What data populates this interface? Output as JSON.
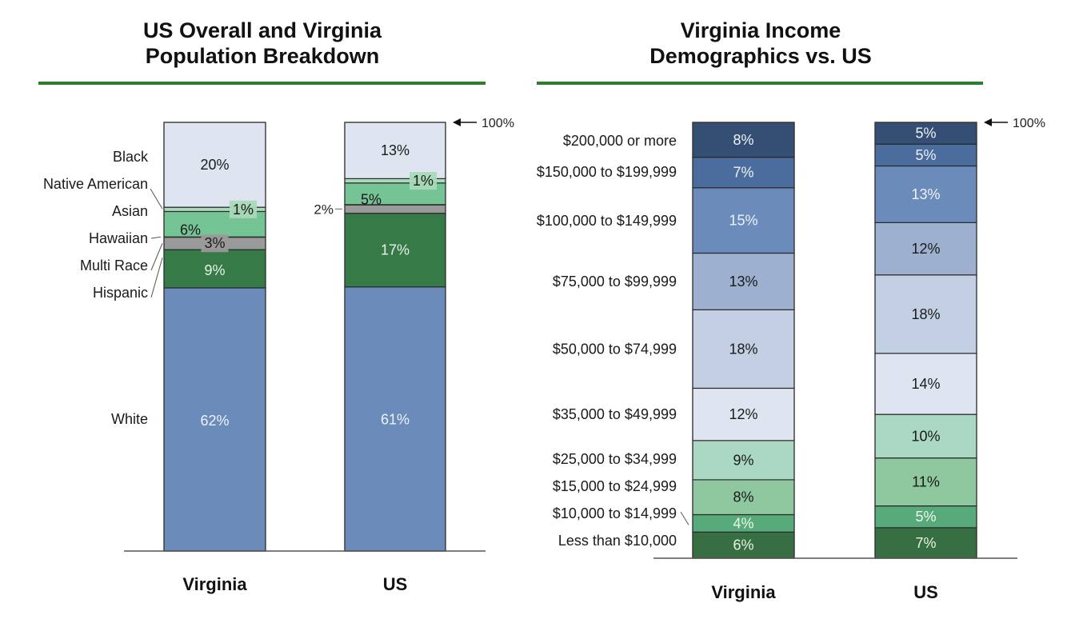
{
  "charts": [
    {
      "id": "population",
      "title_line1": "US Overall and Virginia",
      "title_line2": "Population Breakdown"
    },
    {
      "id": "income",
      "title_line1": "Virginia Income",
      "title_line2": "Demographics vs. US"
    }
  ],
  "chart_data": [
    {
      "type": "bar",
      "stacked": true,
      "title": "US Overall and Virginia Population Breakdown",
      "categories": [
        "Virginia",
        "US"
      ],
      "top_marker": "100%",
      "series": [
        {
          "name": "White",
          "values": [
            62,
            61
          ],
          "labels": [
            "62%",
            "61%"
          ],
          "color": "#6b8cbb",
          "text_color": "#eef2f8"
        },
        {
          "name": "Hispanic",
          "values": [
            9,
            17
          ],
          "labels": [
            "9%",
            "17%"
          ],
          "color": "#367a48",
          "text_color": "#e8f2e8"
        },
        {
          "name": "Multi Race",
          "values": [
            3,
            2
          ],
          "labels": [
            "3%",
            "2%"
          ],
          "color": "#9a9a9a",
          "text_color": "#1a1a1a"
        },
        {
          "name": "Hawaiian",
          "values": [
            0,
            0
          ],
          "labels": [
            "",
            ""
          ],
          "color": "#222222",
          "text_color": "#1a1a1a"
        },
        {
          "name": "Asian",
          "values": [
            6,
            5
          ],
          "labels": [
            "6%",
            "5%"
          ],
          "color": "#74c496",
          "text_color": "#1a1a1a"
        },
        {
          "name": "Native American",
          "values": [
            1,
            1
          ],
          "labels": [
            "1%",
            "1%"
          ],
          "color": "#a9d9b8",
          "text_color": "#1a1a1a"
        },
        {
          "name": "Black",
          "values": [
            20,
            13
          ],
          "labels": [
            "20%",
            "13%"
          ],
          "color": "#dfe5f0",
          "text_color": "#1a1a1a"
        }
      ],
      "ylim": [
        0,
        100
      ],
      "legend": "left-side labels"
    },
    {
      "type": "bar",
      "stacked": true,
      "title": "Virginia Income Demographics vs. US",
      "categories": [
        "Virginia",
        "US"
      ],
      "top_marker": "100%",
      "series": [
        {
          "name": "Less than $10,000",
          "values": [
            6,
            7
          ],
          "labels": [
            "6%",
            "7%"
          ],
          "color": "#376f43",
          "text_color": "#e8f2e8"
        },
        {
          "name": "$10,000 to $14,999",
          "values": [
            4,
            5
          ],
          "labels": [
            "4%",
            "5%"
          ],
          "color": "#57ab7b",
          "text_color": "#eef7ef"
        },
        {
          "name": "$15,000 to $24,999",
          "values": [
            8,
            11
          ],
          "labels": [
            "8%",
            "11%"
          ],
          "color": "#8fc89e",
          "text_color": "#1a1a1a"
        },
        {
          "name": "$25,000 to $34,999",
          "values": [
            9,
            10
          ],
          "labels": [
            "9%",
            "10%"
          ],
          "color": "#aad8c2",
          "text_color": "#1a1a1a"
        },
        {
          "name": "$35,000 to $49,999",
          "values": [
            12,
            14
          ],
          "labels": [
            "12%",
            "14%"
          ],
          "color": "#dfe5f0",
          "text_color": "#1a1a1a"
        },
        {
          "name": "$50,000 to $74,999",
          "values": [
            18,
            18
          ],
          "labels": [
            "18%",
            "18%"
          ],
          "color": "#c3cfe2",
          "text_color": "#1a1a1a"
        },
        {
          "name": "$75,000 to $99,999",
          "values": [
            13,
            12
          ],
          "labels": [
            "13%",
            "12%"
          ],
          "color": "#9db0cf",
          "text_color": "#1a1a1a"
        },
        {
          "name": "$100,000 to $149,999",
          "values": [
            15,
            13
          ],
          "labels": [
            "15%",
            "13%"
          ],
          "color": "#6b8cbb",
          "text_color": "#eef2f8"
        },
        {
          "name": "$150,000 to $199,999",
          "values": [
            7,
            5
          ],
          "labels": [
            "7%",
            "5%"
          ],
          "color": "#4a6d9d",
          "text_color": "#eef2f8"
        },
        {
          "name": "$200,000 or more",
          "values": [
            8,
            5
          ],
          "labels": [
            "8%",
            "5%"
          ],
          "color": "#354f74",
          "text_color": "#eef2f8"
        }
      ],
      "ylim": [
        0,
        100
      ],
      "legend": "left-side labels"
    }
  ]
}
